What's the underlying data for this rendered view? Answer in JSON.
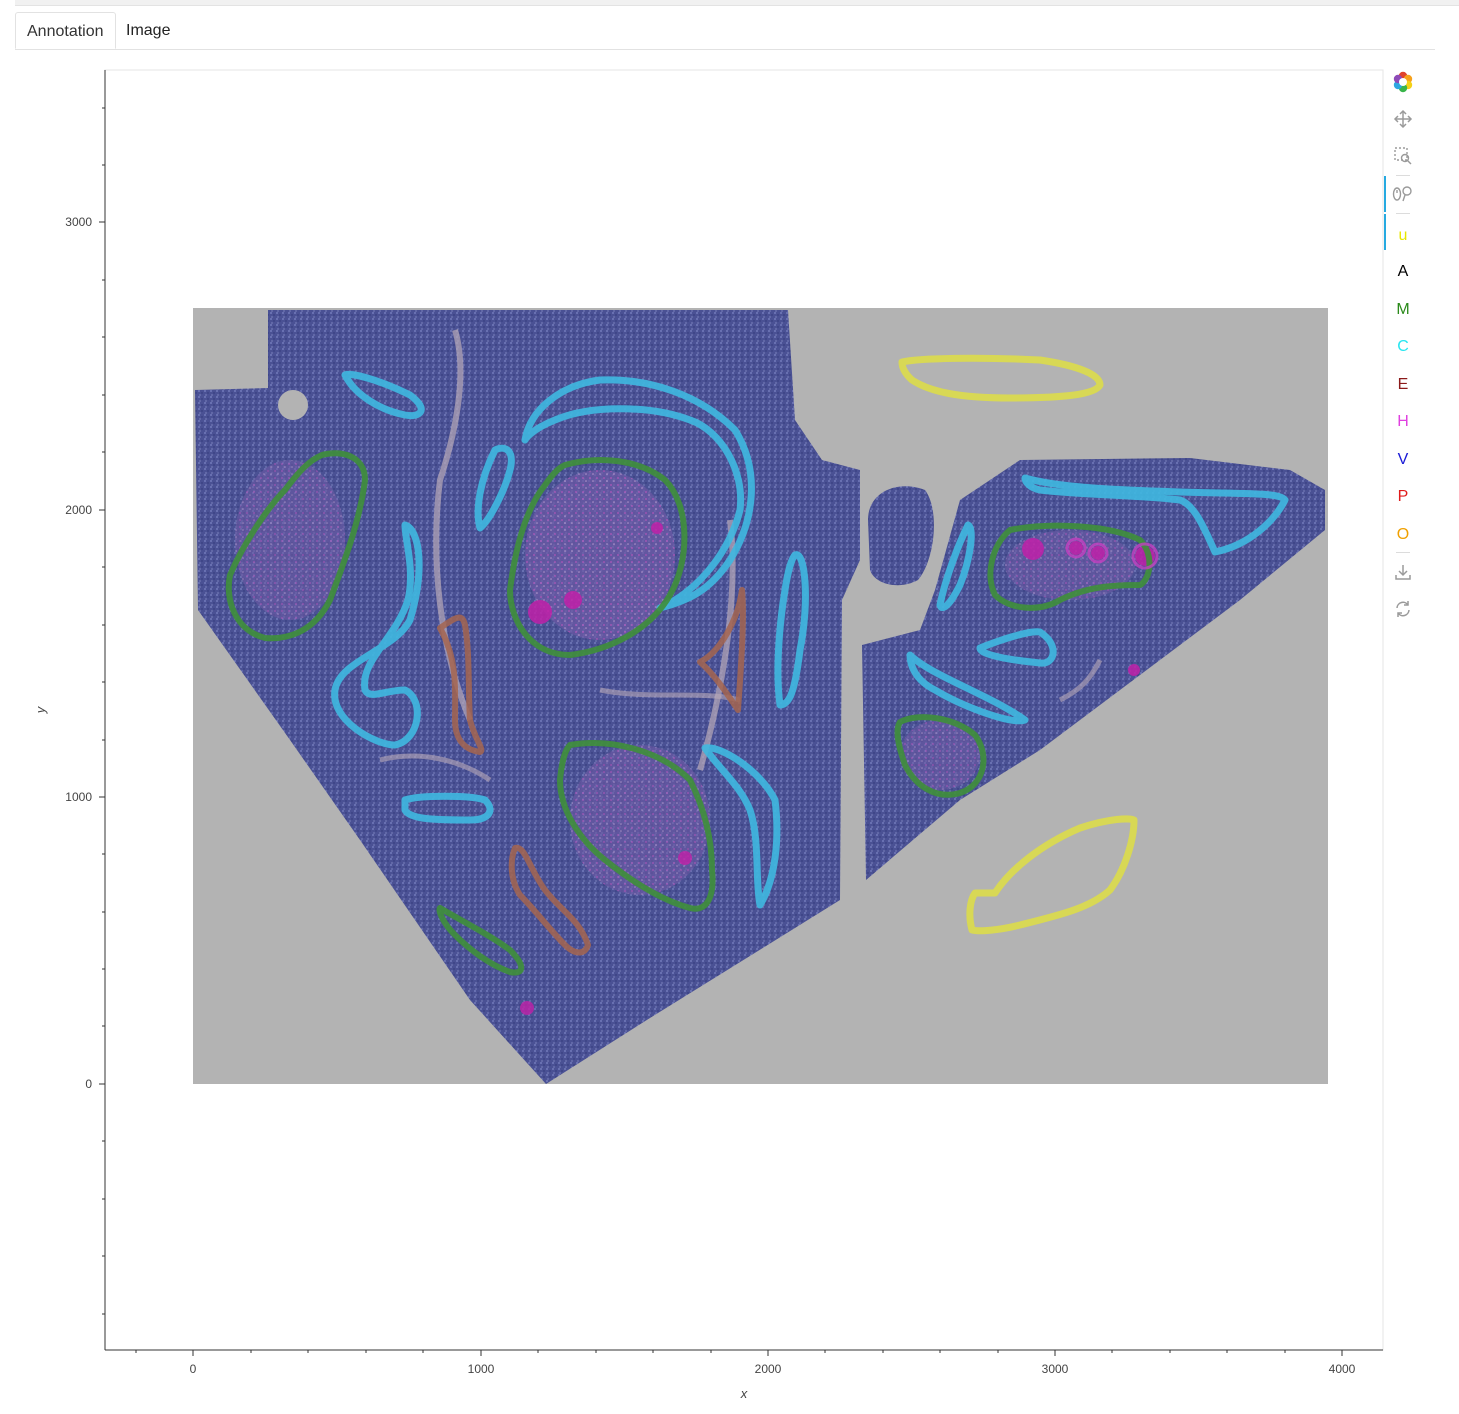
{
  "tabs": [
    {
      "label": "Annotation",
      "active": true
    },
    {
      "label": "Image",
      "active": false
    }
  ],
  "plot": {
    "xlabel": "x",
    "ylabel": "y",
    "x_ticks": [
      "0",
      "1000",
      "2000",
      "3000",
      "4000"
    ],
    "y_ticks": [
      "0",
      "1000",
      "2000",
      "3000"
    ],
    "x_range": [
      -300,
      4150
    ],
    "y_range": [
      -920,
      3520
    ],
    "image_extent": {
      "x": [
        0,
        3950
      ],
      "y": [
        0,
        2700
      ]
    },
    "image_background": "#b3b3b3",
    "tissue_color": "#4a5194"
  },
  "annotations": [
    {
      "class": "C",
      "color": "#3fb8e0"
    },
    {
      "class": "M",
      "color": "#3f8f3a"
    },
    {
      "class": "E",
      "color": "#a5654f"
    },
    {
      "class": "u",
      "color": "#dcdc4a"
    },
    {
      "class": "H",
      "color": "#c440c0"
    }
  ],
  "toolbar": {
    "logo_icon": "bokeh-logo-icon",
    "pan_icon": "pan-icon",
    "box_zoom_icon": "box-zoom-icon",
    "wheel_zoom_icon": "wheel-zoom-icon",
    "class_tools": [
      {
        "label": "u",
        "color": "#e8e800"
      },
      {
        "label": "A",
        "color": "#000000"
      },
      {
        "label": "M",
        "color": "#2a8a1a"
      },
      {
        "label": "C",
        "color": "#28e6f0"
      },
      {
        "label": "E",
        "color": "#8b1a1a"
      },
      {
        "label": "H",
        "color": "#e040e0"
      },
      {
        "label": "V",
        "color": "#1a1ad6"
      },
      {
        "label": "P",
        "color": "#e01a1a"
      },
      {
        "label": "O",
        "color": "#f0a000"
      }
    ],
    "save_icon": "save-icon",
    "reset_icon": "reset-icon"
  }
}
